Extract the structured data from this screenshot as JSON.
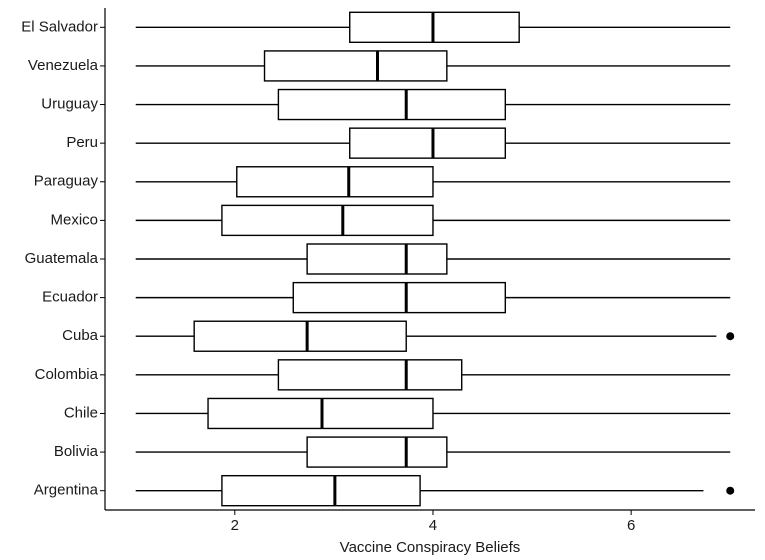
{
  "chart_data": {
    "type": "boxplot",
    "orientation": "horizontal",
    "x_label": "Vaccine Conspiracy Beliefs",
    "categories": [
      "El Salvador",
      "Venezuela",
      "Uruguay",
      "Peru",
      "Paraguay",
      "Mexico",
      "Guatemala",
      "Ecuador",
      "Cuba",
      "Colombia",
      "Chile",
      "Bolivia",
      "Argentina"
    ],
    "whisker_low": [
      1,
      1,
      1,
      1,
      1,
      1,
      1,
      1,
      1,
      1,
      1,
      1,
      1
    ],
    "q1": [
      3.16,
      2.3,
      2.44,
      3.16,
      2.02,
      1.87,
      2.73,
      2.59,
      1.59,
      2.44,
      1.73,
      2.73,
      1.87
    ],
    "median": [
      4.0,
      3.44,
      3.73,
      4.0,
      3.15,
      3.09,
      3.73,
      3.73,
      2.73,
      3.73,
      2.88,
      3.73,
      3.01
    ],
    "q3": [
      4.87,
      4.14,
      4.73,
      4.73,
      4.0,
      4.0,
      4.14,
      4.73,
      3.73,
      4.29,
      4.0,
      4.14,
      3.87
    ],
    "whisker_high": [
      7,
      7,
      7,
      7,
      7,
      7,
      7,
      7,
      6.86,
      7,
      7,
      7,
      6.73
    ],
    "outliers": [
      [],
      [],
      [],
      [],
      [],
      [],
      [],
      [],
      [
        7
      ],
      [],
      [],
      [],
      [
        7
      ]
    ],
    "color": "#000000",
    "xlim": [
      0.69,
      7.25
    ],
    "xticks": [
      2,
      4,
      6
    ],
    "grid": false
  }
}
